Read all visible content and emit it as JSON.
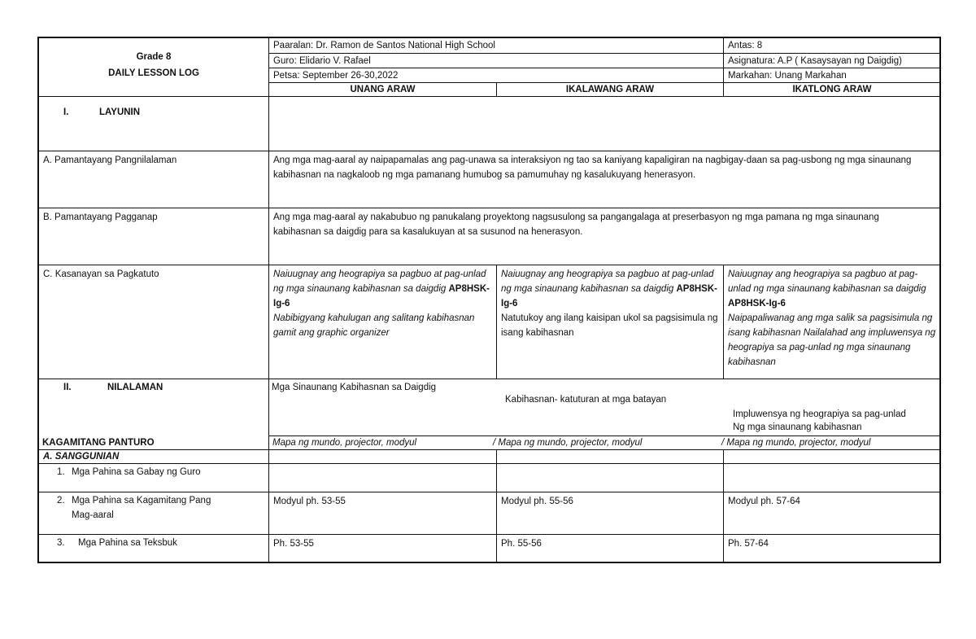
{
  "header": {
    "grade": "Grade 8",
    "title": "DAILY LESSON LOG",
    "paaralan": "Paaralan: Dr. Ramon de Santos National High School",
    "guro": "Guro: Elidario V. Rafael",
    "petsa": "Petsa: September 26-30,2022",
    "antas": "Antas: 8",
    "asignatura": "Asignatura: A.P ( Kasaysayan ng Daigdig)",
    "markahan": "Markahan: Unang Markahan",
    "days": [
      "UNANG ARAW",
      "IKALAWANG ARAW",
      "IKATLONG ARAW"
    ]
  },
  "layunin": {
    "num": "I.",
    "label": "LAYUNIN"
  },
  "pamantayang_pangnilalaman": {
    "label": "A. Pamantayang Pangnilalaman",
    "text": "Ang mga mag-aaral ay naipapamalas ang pag-unawa sa interaksiyon ng tao sa kaniyang kapaligiran na nagbigay-daan sa pag-usbong ng mga sinaunang kabihasnan na nagkaloob ng mga pamanang humubog sa pamumuhay ng kasalukuyang henerasyon."
  },
  "pamantayang_pagganap": {
    "label": "B. Pamantayang Pagganap",
    "text": "Ang mga mag-aaral ay nakabubuo ng panukalang proyektong nagsusulong sa pangangalaga at preserbasyon ng mga pamana ng mga sinaunang kabihasnan sa daigdig para sa kasalukuyan at sa susunod na henerasyon."
  },
  "kasanayan": {
    "label": "C. Kasanayan sa Pagkatuto",
    "days": [
      {
        "intro": "Naiuugnay ang heograpiya sa pagbuo at pag-unlad ng mga sinaunang kabihasnan sa daigdig",
        "code": "AP8HSK-Ig-6",
        "rest": "Nabibigyang kahulugan ang salitang kabihasnan gamit ang graphic organizer"
      },
      {
        "intro": "Naiuugnay ang heograpiya sa pagbuo at pag-unlad ng mga sinaunang kabihasnan sa daigdig",
        "code": "AP8HSK-Ig-6",
        "rest": "Natutukoy ang ilang kaisipan ukol sa pagsisimula ng isang kabihasnan"
      },
      {
        "intro": "Naiuugnay ang heograpiya sa pagbuo at pag-unlad ng mga sinaunang kabihasnan sa daigdig",
        "code": "AP8HSK-Ig-6",
        "rest": "Naipapaliwanag ang mga salik sa pagsisimula ng isang kabihasnan Nailalahad ang impluwensya ng heograpiya sa pag-unlad ng mga sinaunang kabihasnan"
      }
    ]
  },
  "nilalaman": {
    "num": "II.",
    "label": "NILALAMAN",
    "topic1": "Mga Sinaunang Kabihasnan sa Daigdig",
    "topic2": "Kabihasnan- katuturan at mga batayan",
    "topic3_line1": "Impluwensya ng heograpiya sa pag-unlad",
    "topic3_line2": "Ng mga sinaunang kabihasnan"
  },
  "kagamitang": {
    "label": "KAGAMITANG PANTURO",
    "days": [
      "Mapa ng mundo, projector, modyul",
      "/ Mapa ng mundo, projector, modyul",
      "/ Mapa ng mundo, projector, modyul"
    ]
  },
  "sanggunian": {
    "label": "A. SANGGUNIAN",
    "items": [
      {
        "num": "1.",
        "label": "Mga Pahina sa Gabay ng Guro",
        "days": [
          "",
          "",
          ""
        ]
      },
      {
        "num": "2.",
        "label": "Mga Pahina sa Kagamitang Pang Mag-aaral",
        "days": [
          "Modyul ph. 53-55",
          "Modyul ph. 55-56",
          "Modyul ph. 57-64"
        ]
      },
      {
        "num": "3.",
        "label": "Mga Pahina sa Teksbuk",
        "days": [
          "Ph. 53-55",
          "Ph. 55-56",
          "Ph. 57-64"
        ]
      }
    ]
  }
}
